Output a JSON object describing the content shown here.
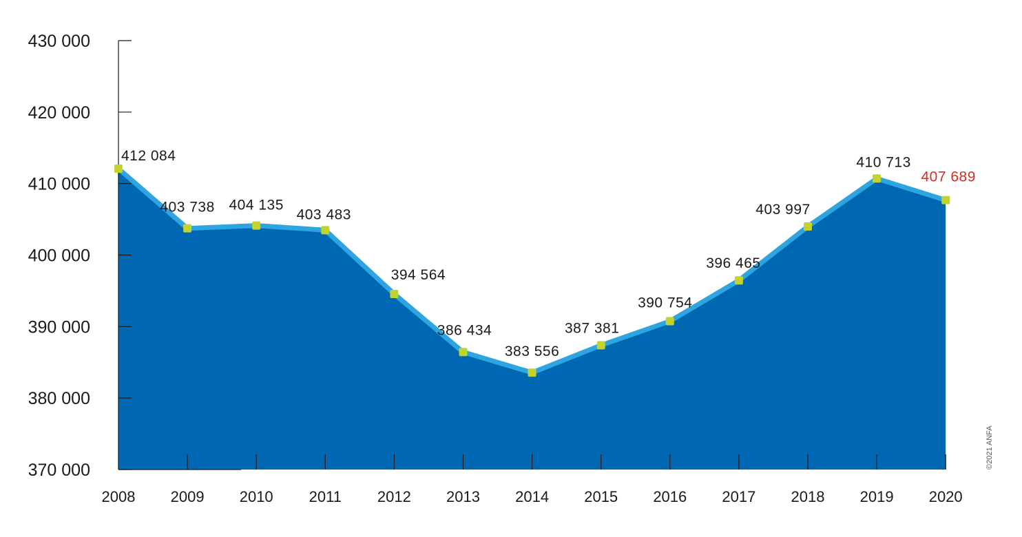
{
  "chart_data": {
    "type": "area",
    "x": [
      "2008",
      "2009",
      "2010",
      "2011",
      "2012",
      "2013",
      "2014",
      "2015",
      "2016",
      "2017",
      "2018",
      "2019",
      "2020"
    ],
    "series": [
      {
        "values": [
          412084,
          403738,
          404135,
          403483,
          394564,
          386434,
          383556,
          387381,
          390754,
          396465,
          403997,
          410713,
          407689
        ]
      }
    ],
    "data_labels": [
      "412 084",
      "403 738",
      "404 135",
      "403 483",
      "394 564",
      "386 434",
      "383 556",
      "387 381",
      "390 754",
      "396 465",
      "403 997",
      "410 713",
      "407 689"
    ],
    "highlight_index": 12,
    "yticks": [
      370000,
      380000,
      390000,
      400000,
      410000,
      420000,
      430000
    ],
    "ytick_labels": [
      "370 000",
      "380 000",
      "390 000",
      "400 000",
      "410 000",
      "420 000",
      "430 000"
    ],
    "ylim": [
      370000,
      430000
    ],
    "title": "",
    "xlabel": "",
    "ylabel": "",
    "grid": false,
    "colors": {
      "area_fill": "#0068b3",
      "line": "#2ca5e0",
      "marker": "#c2d22e",
      "highlight_label": "#d62b1f",
      "text": "#1a1a1a",
      "axis": "#1a1a1a"
    }
  },
  "copyright": "©2021 ANFA"
}
